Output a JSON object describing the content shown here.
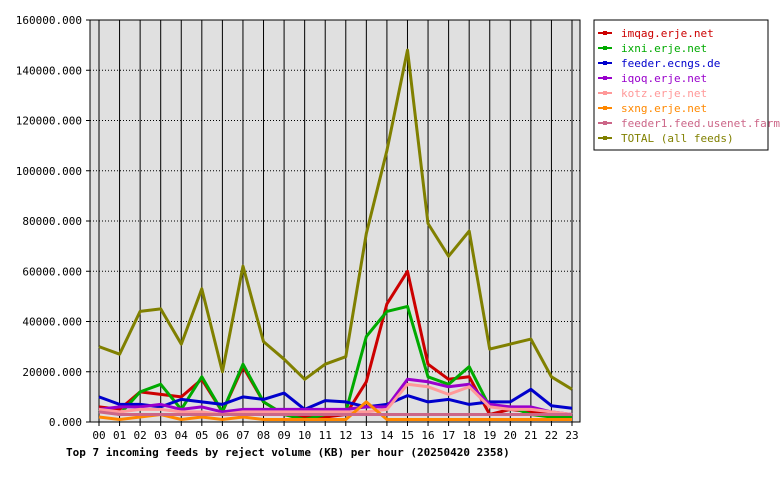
{
  "chart_data": {
    "type": "line",
    "title": "Top 7 incoming feeds by reject volume (KB) per hour (20250420 2358)",
    "xlabel": "",
    "ylabel": "",
    "grid": true,
    "legend_position": "right",
    "ylim": [
      0,
      160000
    ],
    "y_ticks": [
      "0.000",
      "20000.000",
      "40000.000",
      "60000.000",
      "80000.000",
      "100000.000",
      "120000.000",
      "140000.000",
      "160000.000"
    ],
    "categories": [
      "00",
      "01",
      "02",
      "03",
      "04",
      "05",
      "06",
      "07",
      "08",
      "09",
      "10",
      "11",
      "12",
      "13",
      "14",
      "15",
      "16",
      "17",
      "18",
      "19",
      "20",
      "21",
      "22",
      "23"
    ],
    "series": [
      {
        "name": "imqag.erje.net",
        "color": "#cc0000",
        "values": [
          6000,
          5000,
          12000,
          11000,
          10000,
          17000,
          4000,
          22000,
          8000,
          3000,
          2000,
          2000,
          3000,
          16000,
          47000,
          60000,
          23000,
          17000,
          18000,
          3000,
          5000,
          4000,
          3000,
          3000
        ]
      },
      {
        "name": "ixni.erje.net",
        "color": "#00aa00",
        "values": [
          5000,
          3000,
          12000,
          15000,
          5000,
          18000,
          4000,
          23000,
          8000,
          3000,
          1000,
          3000,
          4000,
          34000,
          44000,
          46000,
          18000,
          15000,
          22000,
          6000,
          6000,
          3000,
          2000,
          2000
        ]
      },
      {
        "name": "feeder.ecngs.de",
        "color": "#0000cc",
        "values": [
          10000,
          7000,
          7000,
          6000,
          9000,
          8000,
          7000,
          10000,
          9000,
          11500,
          5000,
          8500,
          8000,
          6000,
          7000,
          10500,
          8000,
          9000,
          7000,
          8000,
          8000,
          13000,
          6500,
          5500
        ]
      },
      {
        "name": "iqoq.erje.net",
        "color": "#9900cc",
        "values": [
          5000,
          6000,
          6000,
          7000,
          5000,
          6000,
          4000,
          5000,
          5000,
          5000,
          5000,
          5000,
          5000,
          6000,
          6000,
          17000,
          16000,
          14000,
          15000,
          7000,
          6000,
          6000,
          4000,
          3000
        ]
      },
      {
        "name": "kotz.erje.net",
        "color": "#ff9999",
        "values": [
          5000,
          4000,
          5000,
          5000,
          4000,
          4000,
          3000,
          4000,
          4000,
          4000,
          4000,
          4000,
          4000,
          4000,
          5000,
          15000,
          14000,
          11000,
          14000,
          6000,
          5000,
          5000,
          4000,
          3000
        ]
      },
      {
        "name": "sxng.erje.net",
        "color": "#ff8800",
        "values": [
          2000,
          1000,
          2000,
          3000,
          1000,
          2000,
          1000,
          2000,
          1000,
          1000,
          1000,
          1000,
          1000,
          8000,
          1000,
          1000,
          1000,
          1000,
          1000,
          1000,
          1000,
          1000,
          1000,
          1000
        ]
      },
      {
        "name": "feeder1.feed.usenet.farm",
        "color": "#cc6688",
        "values": [
          4000,
          3000,
          3000,
          3000,
          3000,
          3000,
          3000,
          3000,
          3000,
          3000,
          3000,
          3000,
          3000,
          3000,
          3000,
          3000,
          3000,
          3000,
          3000,
          3000,
          3000,
          3000,
          3000,
          3000
        ]
      },
      {
        "name": "TOTAL (all feeds)",
        "color": "#808000",
        "values": [
          30000,
          27000,
          44000,
          45000,
          31000,
          53000,
          20000,
          62000,
          32000,
          25000,
          17000,
          23000,
          26000,
          75000,
          108000,
          148000,
          79000,
          66000,
          76000,
          29000,
          31000,
          33000,
          18000,
          13000
        ]
      }
    ]
  }
}
